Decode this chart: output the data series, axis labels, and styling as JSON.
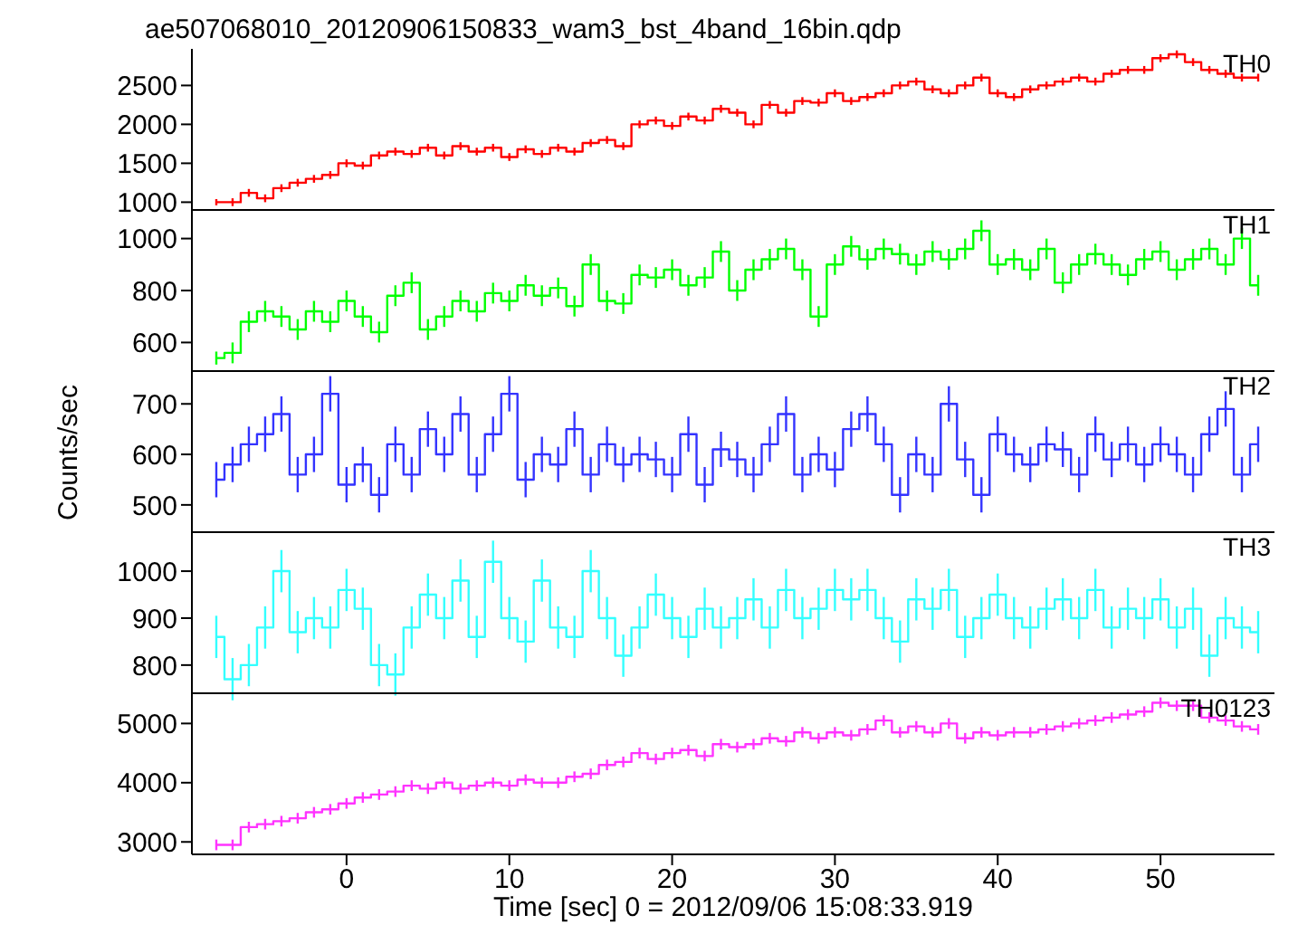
{
  "chart_data": [
    {
      "type": "step",
      "title": "ae507068010_20120906150833_wam3_bst_4band_16bin.qdp",
      "tick_labels": "y",
      "xlim": [
        -9.5,
        57
      ],
      "xticks": [
        0,
        10,
        20,
        30,
        40,
        50
      ],
      "ylim": [
        900,
        2970
      ],
      "yticks": [
        1000,
        1500,
        2000,
        2500
      ],
      "x": [
        -8,
        -7,
        -6,
        -5,
        -4,
        -3,
        -2,
        -1,
        0,
        1,
        2,
        3,
        4,
        5,
        6,
        7,
        8,
        9,
        10,
        11,
        12,
        13,
        14,
        15,
        16,
        17,
        18,
        19,
        20,
        21,
        22,
        23,
        24,
        25,
        26,
        27,
        28,
        29,
        30,
        31,
        32,
        33,
        34,
        35,
        36,
        37,
        38,
        39,
        40,
        41,
        42,
        43,
        44,
        45,
        46,
        47,
        48,
        49,
        50,
        51,
        52,
        53,
        54,
        55,
        56
      ],
      "series": [
        {
          "name": "TH0",
          "color": "#ff0000",
          "values": [
            1000,
            1000,
            1120,
            1050,
            1180,
            1250,
            1300,
            1350,
            1500,
            1470,
            1600,
            1650,
            1620,
            1700,
            1600,
            1720,
            1650,
            1700,
            1580,
            1680,
            1620,
            1700,
            1650,
            1760,
            1800,
            1720,
            2000,
            2050,
            1980,
            2100,
            2050,
            2200,
            2150,
            2000,
            2250,
            2150,
            2300,
            2280,
            2400,
            2300,
            2350,
            2400,
            2500,
            2550,
            2450,
            2400,
            2500,
            2600,
            2400,
            2350,
            2450,
            2500,
            2550,
            2600,
            2550,
            2650,
            2700,
            2700,
            2850,
            2900,
            2800,
            2700,
            2650,
            2600,
            2600
          ],
          "errors": [
            40,
            50,
            50,
            50,
            50,
            50,
            50,
            50,
            50,
            50,
            50,
            50,
            50,
            50,
            50,
            50,
            50,
            50,
            50,
            50,
            50,
            50,
            50,
            50,
            50,
            50,
            50,
            50,
            50,
            50,
            50,
            50,
            50,
            50,
            50,
            50,
            50,
            50,
            50,
            50,
            50,
            50,
            50,
            50,
            50,
            50,
            50,
            50,
            50,
            50,
            50,
            50,
            50,
            50,
            50,
            50,
            50,
            50,
            50,
            50,
            50,
            50,
            50,
            50,
            50
          ]
        }
      ]
    },
    {
      "type": "step",
      "tick_labels": "y",
      "xlim": [
        -9.5,
        57
      ],
      "xticks": [
        0,
        10,
        20,
        30,
        40,
        50
      ],
      "ylim": [
        490,
        1110
      ],
      "yticks": [
        600,
        800,
        1000
      ],
      "x": [
        -8,
        -7,
        -6,
        -5,
        -4,
        -3,
        -2,
        -1,
        0,
        1,
        2,
        3,
        4,
        5,
        6,
        7,
        8,
        9,
        10,
        11,
        12,
        13,
        14,
        15,
        16,
        17,
        18,
        19,
        20,
        21,
        22,
        23,
        24,
        25,
        26,
        27,
        28,
        29,
        30,
        31,
        32,
        33,
        34,
        35,
        36,
        37,
        38,
        39,
        40,
        41,
        42,
        43,
        44,
        45,
        46,
        47,
        48,
        49,
        50,
        51,
        52,
        53,
        54,
        55,
        56
      ],
      "series": [
        {
          "name": "TH1",
          "color": "#00ff00",
          "values": [
            540,
            560,
            680,
            720,
            700,
            650,
            720,
            680,
            760,
            700,
            640,
            780,
            830,
            650,
            700,
            760,
            720,
            790,
            760,
            820,
            780,
            810,
            740,
            900,
            760,
            750,
            860,
            850,
            880,
            820,
            850,
            950,
            800,
            880,
            920,
            960,
            880,
            700,
            900,
            970,
            920,
            960,
            940,
            900,
            950,
            920,
            960,
            1030,
            900,
            920,
            880,
            960,
            830,
            900,
            940,
            900,
            860,
            920,
            950,
            880,
            920,
            960,
            900,
            1000,
            820
          ],
          "errors": [
            25,
            40,
            40,
            40,
            40,
            40,
            40,
            40,
            40,
            40,
            40,
            40,
            40,
            40,
            40,
            40,
            40,
            40,
            40,
            40,
            40,
            40,
            40,
            40,
            40,
            40,
            40,
            40,
            40,
            40,
            40,
            40,
            40,
            40,
            40,
            40,
            40,
            40,
            40,
            40,
            40,
            40,
            40,
            40,
            40,
            40,
            40,
            40,
            40,
            40,
            40,
            40,
            40,
            40,
            40,
            40,
            40,
            40,
            40,
            40,
            40,
            40,
            40,
            40,
            40
          ]
        }
      ]
    },
    {
      "type": "step",
      "ylabel": "Counts/sec",
      "tick_labels": "y",
      "xlim": [
        -9.5,
        57
      ],
      "xticks": [
        0,
        10,
        20,
        30,
        40,
        50
      ],
      "ylim": [
        446,
        765
      ],
      "yticks": [
        500,
        600,
        700
      ],
      "x": [
        -8,
        -7,
        -6,
        -5,
        -4,
        -3,
        -2,
        -1,
        0,
        1,
        2,
        3,
        4,
        5,
        6,
        7,
        8,
        9,
        10,
        11,
        12,
        13,
        14,
        15,
        16,
        17,
        18,
        19,
        20,
        21,
        22,
        23,
        24,
        25,
        26,
        27,
        28,
        29,
        30,
        31,
        32,
        33,
        34,
        35,
        36,
        37,
        38,
        39,
        40,
        41,
        42,
        43,
        44,
        45,
        46,
        47,
        48,
        49,
        50,
        51,
        52,
        53,
        54,
        55,
        56
      ],
      "series": [
        {
          "name": "TH2",
          "color": "#3333ff",
          "values": [
            550,
            580,
            620,
            640,
            680,
            560,
            600,
            720,
            540,
            580,
            520,
            620,
            560,
            650,
            600,
            680,
            560,
            640,
            720,
            550,
            600,
            580,
            650,
            560,
            620,
            580,
            600,
            590,
            560,
            640,
            540,
            610,
            590,
            560,
            620,
            680,
            560,
            600,
            570,
            650,
            680,
            620,
            520,
            600,
            560,
            700,
            590,
            520,
            640,
            600,
            580,
            620,
            610,
            560,
            640,
            590,
            620,
            580,
            620,
            600,
            560,
            640,
            690,
            560,
            620
          ],
          "errors": [
            35,
            35,
            35,
            35,
            35,
            35,
            35,
            35,
            35,
            35,
            35,
            35,
            35,
            35,
            35,
            35,
            35,
            35,
            35,
            35,
            35,
            35,
            35,
            35,
            35,
            35,
            35,
            35,
            35,
            35,
            35,
            35,
            35,
            35,
            35,
            35,
            35,
            35,
            35,
            35,
            35,
            35,
            35,
            35,
            35,
            35,
            35,
            35,
            35,
            35,
            35,
            35,
            35,
            35,
            35,
            35,
            35,
            35,
            35,
            35,
            35,
            35,
            35,
            35,
            35
          ]
        }
      ]
    },
    {
      "type": "step",
      "tick_labels": "y",
      "xlim": [
        -9.5,
        57
      ],
      "xticks": [
        0,
        10,
        20,
        30,
        40,
        50
      ],
      "ylim": [
        740,
        1083
      ],
      "yticks": [
        800,
        900,
        1000
      ],
      "x": [
        -8,
        -7,
        -6,
        -5,
        -4,
        -3,
        -2,
        -1,
        0,
        1,
        2,
        3,
        4,
        5,
        6,
        7,
        8,
        9,
        10,
        11,
        12,
        13,
        14,
        15,
        16,
        17,
        18,
        19,
        20,
        21,
        22,
        23,
        24,
        25,
        26,
        27,
        28,
        29,
        30,
        31,
        32,
        33,
        34,
        35,
        36,
        37,
        38,
        39,
        40,
        41,
        42,
        43,
        44,
        45,
        46,
        47,
        48,
        49,
        50,
        51,
        52,
        53,
        54,
        55,
        56
      ],
      "series": [
        {
          "name": "TH3",
          "color": "#33ffff",
          "values": [
            860,
            770,
            800,
            880,
            1000,
            870,
            900,
            880,
            960,
            920,
            800,
            780,
            880,
            950,
            900,
            980,
            860,
            1020,
            900,
            850,
            980,
            880,
            860,
            1000,
            900,
            820,
            880,
            950,
            900,
            860,
            920,
            880,
            900,
            940,
            880,
            960,
            900,
            920,
            960,
            940,
            960,
            900,
            850,
            940,
            920,
            960,
            860,
            900,
            950,
            900,
            880,
            920,
            940,
            900,
            960,
            880,
            920,
            900,
            940,
            880,
            920,
            820,
            900,
            880,
            870
          ],
          "errors": [
            45,
            45,
            45,
            45,
            45,
            45,
            45,
            45,
            45,
            45,
            45,
            45,
            45,
            45,
            45,
            45,
            45,
            45,
            45,
            45,
            45,
            45,
            45,
            45,
            45,
            45,
            45,
            45,
            45,
            45,
            45,
            45,
            45,
            45,
            45,
            45,
            45,
            45,
            45,
            45,
            45,
            45,
            45,
            45,
            45,
            45,
            45,
            45,
            45,
            45,
            45,
            45,
            45,
            45,
            45,
            45,
            45,
            45,
            45,
            45,
            45,
            45,
            45,
            45,
            45
          ]
        }
      ]
    },
    {
      "type": "step",
      "xlabel": "Time [sec] 0 = 2012/09/06 15:08:33.919",
      "xlim": [
        -9.5,
        57
      ],
      "xticks": [
        0,
        10,
        20,
        30,
        40,
        50
      ],
      "ylim": [
        2790,
        5510
      ],
      "yticks": [
        3000,
        4000,
        5000
      ],
      "x": [
        -8,
        -7,
        -6,
        -5,
        -4,
        -3,
        -2,
        -1,
        0,
        1,
        2,
        3,
        4,
        5,
        6,
        7,
        8,
        9,
        10,
        11,
        12,
        13,
        14,
        15,
        16,
        17,
        18,
        19,
        20,
        21,
        22,
        23,
        24,
        25,
        26,
        27,
        28,
        29,
        30,
        31,
        32,
        33,
        34,
        35,
        36,
        37,
        38,
        39,
        40,
        41,
        42,
        43,
        44,
        45,
        46,
        47,
        48,
        49,
        50,
        51,
        52,
        53,
        54,
        55,
        56
      ],
      "series": [
        {
          "name": "TH0123",
          "color": "#ff33ff",
          "values": [
            2950,
            2950,
            3250,
            3300,
            3350,
            3400,
            3500,
            3550,
            3650,
            3750,
            3800,
            3850,
            3950,
            3900,
            4000,
            3900,
            3950,
            4000,
            3950,
            4050,
            4000,
            4000,
            4100,
            4150,
            4300,
            4350,
            4500,
            4400,
            4500,
            4550,
            4450,
            4650,
            4600,
            4650,
            4750,
            4700,
            4850,
            4750,
            4850,
            4800,
            4900,
            5050,
            4850,
            4950,
            4850,
            5000,
            4750,
            4850,
            4800,
            4850,
            4850,
            4900,
            4950,
            5000,
            5050,
            5100,
            5150,
            5200,
            5350,
            5300,
            5300,
            5100,
            5050,
            4950,
            4900
          ],
          "errors": [
            90,
            90,
            90,
            90,
            90,
            90,
            90,
            90,
            90,
            90,
            90,
            90,
            90,
            90,
            90,
            90,
            90,
            90,
            90,
            90,
            90,
            90,
            90,
            90,
            90,
            90,
            90,
            90,
            90,
            90,
            90,
            90,
            90,
            90,
            90,
            90,
            90,
            90,
            90,
            90,
            90,
            90,
            90,
            90,
            90,
            90,
            90,
            90,
            90,
            90,
            90,
            90,
            90,
            90,
            90,
            90,
            90,
            90,
            90,
            90,
            90,
            90,
            90,
            90,
            90
          ]
        }
      ]
    }
  ]
}
